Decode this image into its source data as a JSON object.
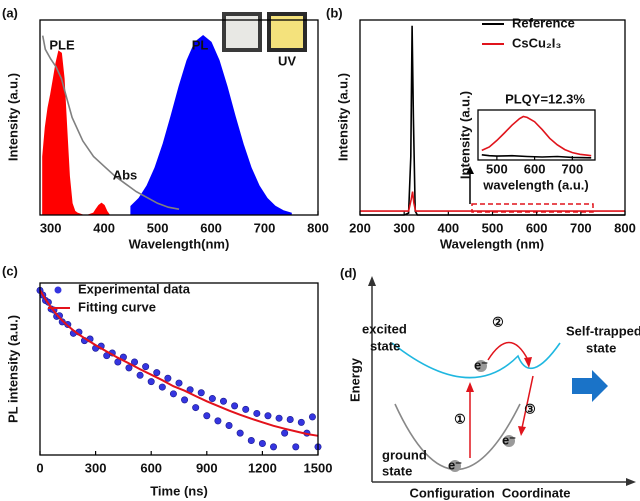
{
  "chart_data": [
    {
      "type": "line",
      "panel_label": "(a)",
      "x_label": "Wavelength(nm)",
      "y_label": "Intensity (a.u.)",
      "xlim": [
        280,
        800
      ],
      "ylim": [
        0,
        1
      ],
      "xticks": [
        300,
        400,
        500,
        600,
        700,
        800
      ],
      "annotations": [
        "UV"
      ],
      "series": [
        {
          "name": "PLE",
          "color": "#ff0000",
          "fill": true,
          "x": [
            285,
            290,
            295,
            300,
            305,
            310,
            315,
            320,
            325,
            330,
            335,
            340,
            345,
            350,
            360,
            370,
            380,
            385,
            390,
            395,
            400,
            405,
            410
          ],
          "values": [
            0.3,
            0.45,
            0.55,
            0.62,
            0.7,
            0.78,
            0.84,
            0.83,
            0.7,
            0.45,
            0.2,
            0.06,
            0.02,
            0.01,
            0,
            0,
            0.01,
            0.03,
            0.05,
            0.06,
            0.05,
            0.02,
            0
          ]
        },
        {
          "name": "PL",
          "color": "#0000ff",
          "fill": true,
          "x": [
            450,
            465,
            480,
            495,
            510,
            525,
            540,
            555,
            570,
            585,
            600,
            615,
            630,
            645,
            660,
            675,
            690,
            705,
            720,
            735,
            750
          ],
          "values": [
            0.045,
            0.085,
            0.149,
            0.241,
            0.363,
            0.507,
            0.658,
            0.793,
            0.886,
            0.92,
            0.886,
            0.793,
            0.658,
            0.507,
            0.363,
            0.241,
            0.149,
            0.085,
            0.045,
            0.022,
            0.01
          ]
        },
        {
          "name": "Abs",
          "color": "#808080",
          "x": [
            285,
            290,
            300,
            310,
            320,
            330,
            340,
            360,
            380,
            400,
            420,
            440,
            460,
            480,
            500,
            520,
            540
          ],
          "values": [
            0.92,
            0.85,
            0.8,
            0.76,
            0.7,
            0.6,
            0.5,
            0.38,
            0.3,
            0.25,
            0.2,
            0.16,
            0.12,
            0.09,
            0.06,
            0.04,
            0.03
          ]
        }
      ]
    },
    {
      "type": "line",
      "panel_label": "(b)",
      "x_label": "Wavelength (nm)",
      "y_label": "Intensity (a.u.)",
      "xlim": [
        200,
        800
      ],
      "ylim": [
        0,
        1
      ],
      "xticks": [
        200,
        300,
        400,
        500,
        600,
        700,
        800
      ],
      "series": [
        {
          "name": "Reference",
          "color": "#000000",
          "x": [
            200,
            300,
            310,
            315,
            318,
            321,
            325,
            330,
            800
          ],
          "values": [
            0,
            0,
            0.01,
            0.3,
            0.97,
            0.5,
            0.02,
            0,
            0
          ]
        },
        {
          "name": "CsCu₂I₃",
          "color": "#e0141c",
          "x": [
            200,
            310,
            316,
            319,
            322,
            326,
            800
          ],
          "values": [
            0.02,
            0.02,
            0.08,
            0.12,
            0.06,
            0.02,
            0.02
          ]
        }
      ]
    },
    {
      "type": "line",
      "x_label": "wavelength (a.u.)",
      "y_label": "Intensity (a.u.)",
      "annotations": [
        "PLQY=12.3%"
      ],
      "xlim": [
        450,
        760
      ],
      "ylim": [
        0,
        1.15
      ],
      "xticks": [
        500,
        600,
        700
      ],
      "series": [
        {
          "color": "#e0141c",
          "x": [
            460,
            480,
            500,
            520,
            540,
            560,
            570,
            580,
            600,
            620,
            640,
            660,
            680,
            700,
            720,
            740,
            750
          ],
          "values": [
            0.22,
            0.3,
            0.45,
            0.62,
            0.8,
            0.95,
            1.0,
            0.98,
            0.88,
            0.7,
            0.5,
            0.35,
            0.24,
            0.17,
            0.13,
            0.11,
            0.1
          ]
        },
        {
          "color": "#000000",
          "x": [
            460,
            480,
            500,
            540,
            580,
            620,
            660,
            700,
            750
          ],
          "values": [
            0.12,
            0.1,
            0.09,
            0.1,
            0.08,
            0.07,
            0.08,
            0.06,
            0.05
          ]
        }
      ]
    },
    {
      "type": "scatter",
      "panel_label": "(c)",
      "x_label": "Time (ns)",
      "y_label": "PL intensity (a.u.)",
      "log_y": true,
      "xlim": [
        0,
        1500
      ],
      "ylim": [
        0.003,
        1.3
      ],
      "xticks": [
        0,
        300,
        600,
        900,
        1200,
        1500
      ],
      "series": [
        {
          "name": "Experimental data",
          "type": "scatter",
          "color": "#3535e0",
          "x": [
            0,
            15,
            30,
            45,
            60,
            75,
            90,
            105,
            120,
            150,
            180,
            210,
            240,
            270,
            300,
            330,
            360,
            390,
            420,
            450,
            480,
            510,
            540,
            570,
            600,
            630,
            660,
            690,
            720,
            750,
            780,
            810,
            840,
            870,
            900,
            930,
            960,
            990,
            1020,
            1050,
            1080,
            1110,
            1140,
            1170,
            1200,
            1230,
            1260,
            1290,
            1320,
            1350,
            1380,
            1410,
            1440,
            1470,
            1500
          ],
          "values": [
            1.0,
            0.85,
            0.7,
            0.66,
            0.52,
            0.5,
            0.4,
            0.41,
            0.33,
            0.3,
            0.22,
            0.23,
            0.17,
            0.18,
            0.13,
            0.14,
            0.1,
            0.11,
            0.08,
            0.095,
            0.065,
            0.08,
            0.05,
            0.068,
            0.04,
            0.055,
            0.033,
            0.045,
            0.026,
            0.038,
            0.021,
            0.03,
            0.016,
            0.027,
            0.012,
            0.022,
            0.01,
            0.02,
            0.0085,
            0.017,
            0.0065,
            0.015,
            0.005,
            0.013,
            0.0045,
            0.012,
            0.004,
            0.011,
            0.0065,
            0.0105,
            0.004,
            0.0095,
            0.0065,
            0.0115,
            0.004
          ]
        },
        {
          "name": "Fitting curve",
          "type": "line",
          "color": "#e3121b",
          "x": [
            0,
            30,
            60,
            90,
            120,
            150,
            180,
            210,
            240,
            270,
            300,
            360,
            420,
            480,
            540,
            600,
            660,
            720,
            780,
            840,
            900,
            960,
            1020,
            1080,
            1140,
            1200,
            1260,
            1320,
            1380,
            1440,
            1500
          ],
          "values": [
            1.004,
            0.727,
            0.548,
            0.428,
            0.346,
            0.287,
            0.244,
            0.211,
            0.185,
            0.164,
            0.145,
            0.116,
            0.093,
            0.076,
            0.062,
            0.051,
            0.042,
            0.034,
            0.029,
            0.024,
            0.02,
            0.017,
            0.0144,
            0.0124,
            0.0108,
            0.0095,
            0.0084,
            0.0076,
            0.0069,
            0.0063,
            0.0059
          ]
        }
      ]
    }
  ],
  "diagram": {
    "panel_label": "(d)",
    "y_axis": "Energy",
    "x_axis": "Configuration  Coordinate",
    "excited": [
      "excited",
      "state"
    ],
    "ground": [
      "ground",
      "state"
    ],
    "self_trapped": [
      "Self-trapped",
      "state"
    ],
    "steps": [
      "①",
      "②",
      "③"
    ],
    "electron": "e⁻"
  }
}
